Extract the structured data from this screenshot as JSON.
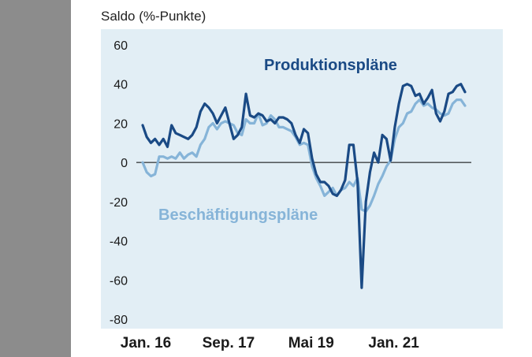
{
  "chart_data": {
    "type": "line",
    "title": "",
    "ylabel": "Saldo (%-Punkte)",
    "xlabel": "",
    "ylim": [
      -80,
      60
    ],
    "yticks": [
      -80,
      -60,
      -40,
      -20,
      0,
      20,
      40,
      60
    ],
    "xticks": [
      {
        "label": "Jan. 16",
        "index": 0
      },
      {
        "label": "Sep. 17",
        "index": 20
      },
      {
        "label": "Mai 19",
        "index": 40
      },
      {
        "label": "Jan. 21",
        "index": 60
      }
    ],
    "grid": false,
    "colors": {
      "background": "#e2eef5",
      "dark": "#1a4a85",
      "light": "#86b4d8",
      "zero_line": "#000000"
    },
    "series": [
      {
        "name": "Produktionspläne",
        "color": "#1a4a85",
        "values": [
          19,
          13,
          10,
          12,
          9,
          12,
          8,
          19,
          15,
          14,
          13,
          12,
          14,
          18,
          26,
          30,
          28,
          25,
          20,
          24,
          28,
          20,
          12,
          14,
          18,
          35,
          24,
          23,
          25,
          24,
          21,
          22,
          20,
          23,
          23,
          22,
          20,
          14,
          10,
          17,
          15,
          2,
          -6,
          -10,
          -10,
          -12,
          -16,
          -17,
          -14,
          -9,
          9,
          9,
          -10,
          -64,
          -20,
          -5,
          5,
          0,
          14,
          12,
          1,
          18,
          30,
          39,
          40,
          39,
          34,
          35,
          30,
          33,
          37,
          25,
          21,
          26,
          35,
          36,
          39,
          40,
          36
        ]
      },
      {
        "name": "Beschäftigungspläne",
        "color": "#86b4d8",
        "values": [
          0,
          -5,
          -7,
          -6,
          3,
          3,
          2,
          3,
          2,
          5,
          2,
          4,
          5,
          3,
          9,
          12,
          18,
          20,
          17,
          20,
          21,
          20,
          19,
          15,
          14,
          22,
          20,
          20,
          25,
          19,
          20,
          24,
          22,
          18,
          18,
          17,
          16,
          13,
          9,
          10,
          9,
          -2,
          -8,
          -12,
          -17,
          -15,
          -13,
          -17,
          -14,
          -13,
          -10,
          -12,
          -8,
          -24,
          -25,
          -22,
          -17,
          -11,
          -7,
          -2,
          1,
          12,
          18,
          20,
          25,
          26,
          30,
          32,
          29,
          30,
          28,
          27,
          25,
          24,
          25,
          30,
          32,
          32,
          29
        ]
      }
    ],
    "annotations": [
      {
        "text": "Produktionspläne",
        "series": "Produktionspläne"
      },
      {
        "text": "Beschäftigungspläne",
        "series": "Beschäftigungspläne"
      }
    ]
  }
}
